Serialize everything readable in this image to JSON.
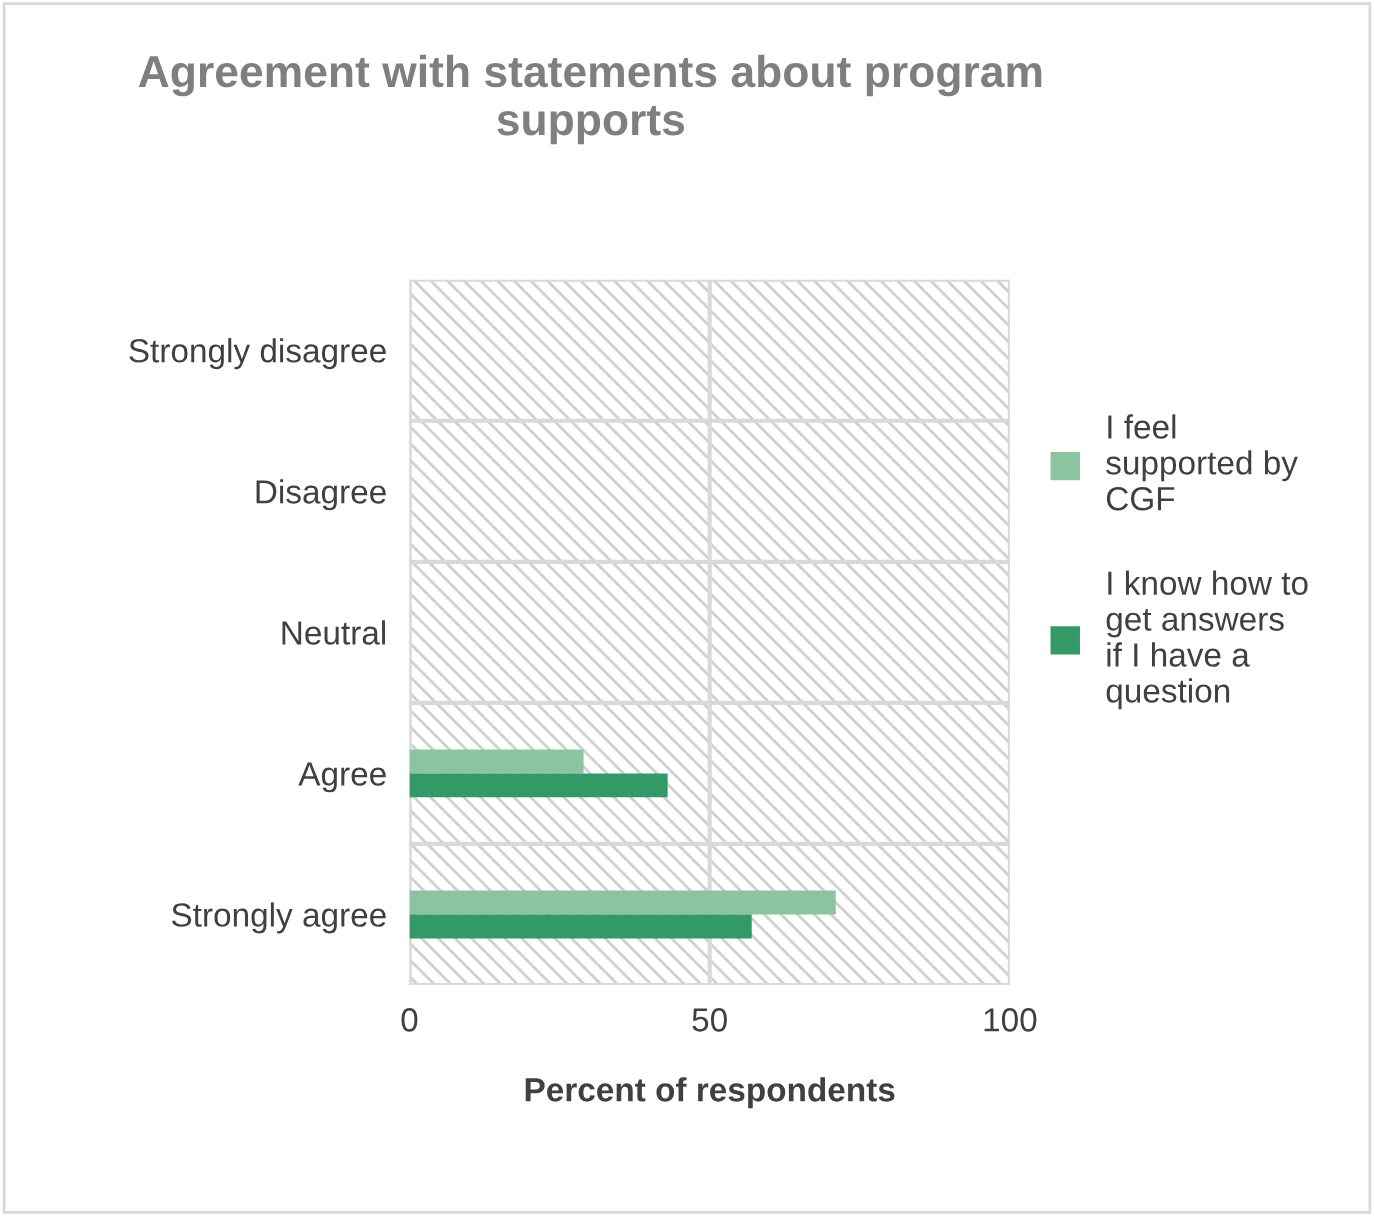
{
  "chart_data": {
    "type": "bar",
    "orientation": "horizontal",
    "title": "Agreement with statements about program supports",
    "xlabel": "Percent of respondents",
    "categories": [
      "Strongly disagree",
      "Disagree",
      "Neutral",
      "Agree",
      "Strongly agree"
    ],
    "series": [
      {
        "name": "I feel supported by CGF",
        "color": "#8cc4a0",
        "values": [
          0,
          0,
          0,
          29,
          71
        ]
      },
      {
        "name": "I know how to get answers if I have a question",
        "color": "#339966",
        "values": [
          0,
          0,
          0,
          43,
          57
        ]
      }
    ],
    "xlim": [
      0,
      100
    ],
    "xticks": [
      0,
      50,
      100
    ],
    "grid": true,
    "legend": "right"
  }
}
